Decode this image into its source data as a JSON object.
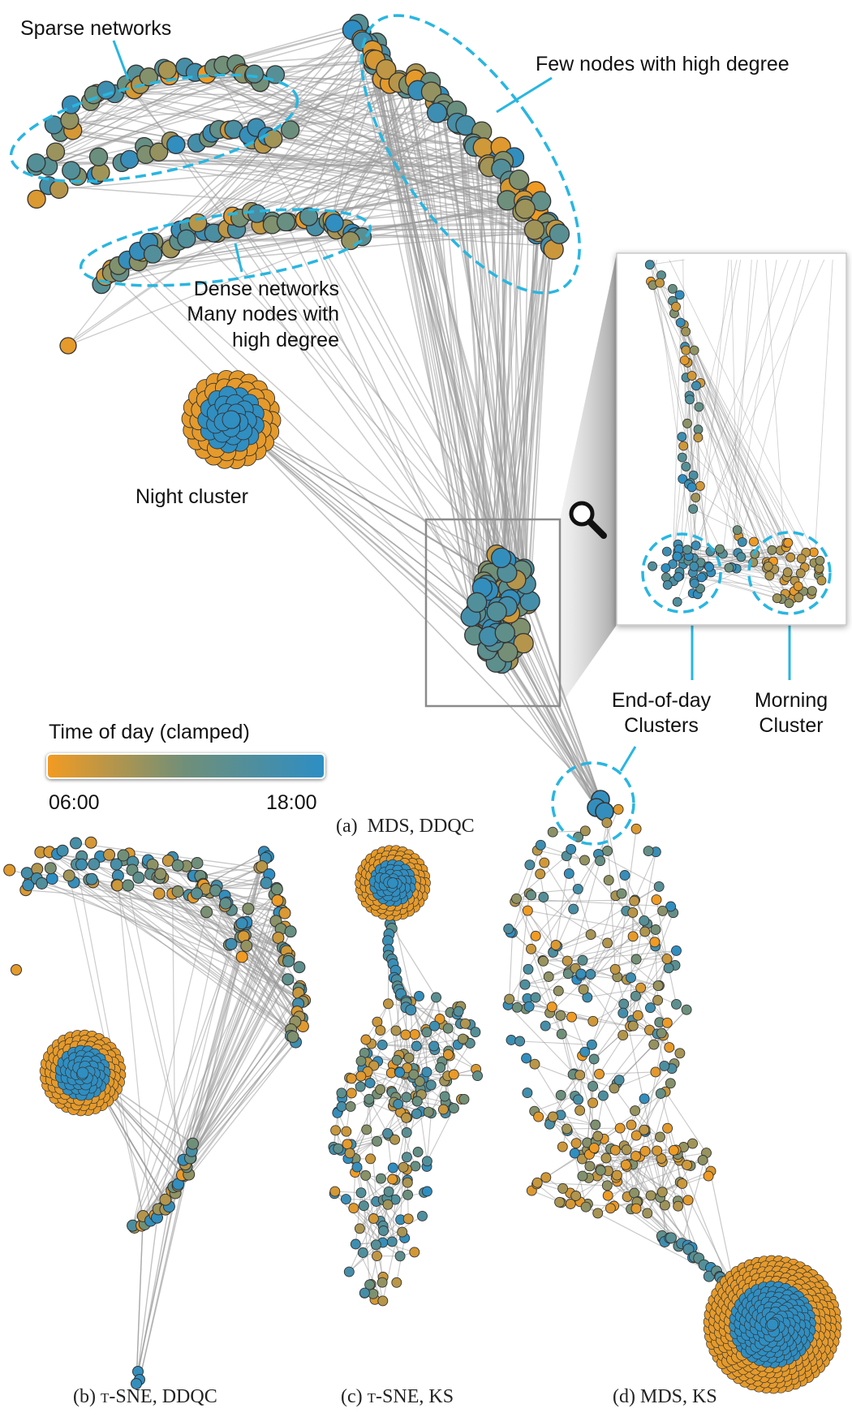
{
  "colors": {
    "morning": "#f29b22",
    "evening": "#2d8ec4",
    "mid": "#6f8f79",
    "edge": "#9a9a9a",
    "annotation": "#29b6e0"
  },
  "annotations": {
    "sparse": "Sparse networks",
    "few_nodes": "Few nodes with high degree",
    "dense_line1": "Dense networks",
    "dense_line2": "Many nodes with",
    "dense_line3": "high degree",
    "night": "Night cluster",
    "end_of_day_line1": "End-of-day",
    "end_of_day_line2": "Clusters",
    "morning_line1": "Morning",
    "morning_line2": "Cluster",
    "magnifier_icon": "magnifier-icon"
  },
  "legend": {
    "title": "Time of day (clamped)",
    "min_label": "06:00",
    "max_label": "18:00"
  },
  "captions": {
    "a": {
      "prefix": "(a)",
      "method": "MDS",
      "metric": "DDQC"
    },
    "b": {
      "prefix": "(b)",
      "method": "t-SNE",
      "metric": "DDQC"
    },
    "c": {
      "prefix": "(c)",
      "method": "t-SNE",
      "metric": "KS"
    },
    "d": {
      "prefix": "(d)",
      "method": "MDS",
      "metric": "KS"
    }
  }
}
